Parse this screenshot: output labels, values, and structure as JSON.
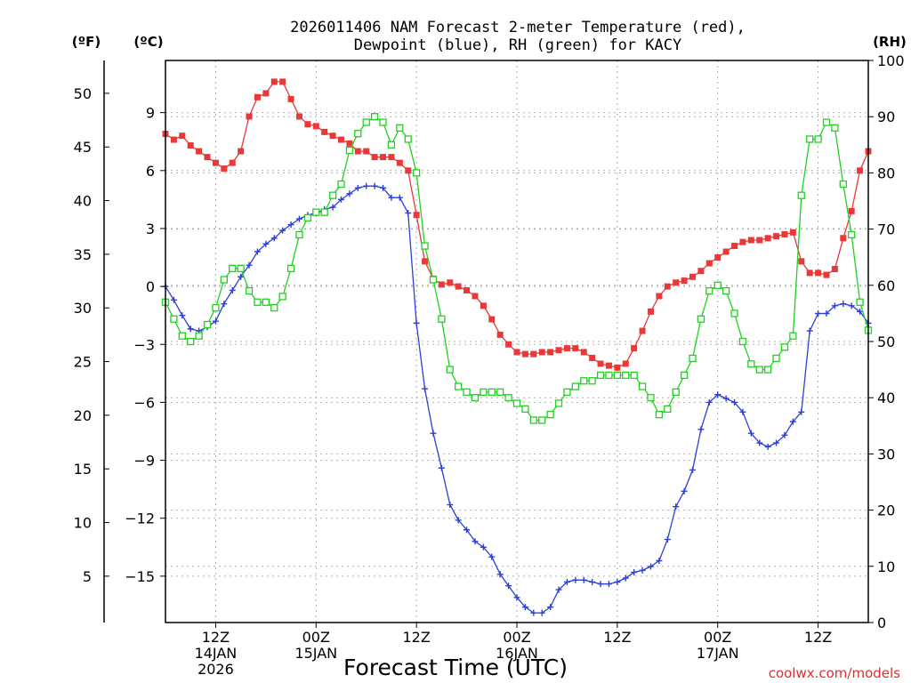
{
  "chart_data": {
    "type": "line",
    "title_lines": [
      "2026011406 NAM Forecast 2-meter Temperature (red),",
      "Dewpoint (blue), RH (green) for KACY"
    ],
    "xlabel": "Forecast Time (UTC)",
    "watermark": "coolwx.com/models",
    "axis_labels": {
      "f": "(ºF)",
      "c": "(ºC)",
      "rh": "(RH)"
    },
    "f_ticks": [
      "5",
      "10",
      "15",
      "20",
      "25",
      "30",
      "35",
      "40",
      "45",
      "50"
    ],
    "c_ticks": [
      "−15",
      "−12",
      "−9",
      "−6",
      "−3",
      "0",
      "3",
      "6",
      "9"
    ],
    "rh_ticks": [
      "0",
      "10",
      "20",
      "30",
      "40",
      "50",
      "60",
      "70",
      "80",
      "90",
      "100"
    ],
    "c_range": [
      -17.4,
      11.7
    ],
    "rh_range": [
      0,
      100
    ],
    "x_range": [
      6,
      90
    ],
    "x_ticks": [
      {
        "hour": 12,
        "lines": [
          "12Z",
          "14JAN",
          "2026"
        ]
      },
      {
        "hour": 24,
        "lines": [
          "00Z",
          "15JAN"
        ]
      },
      {
        "hour": 36,
        "lines": [
          "12Z"
        ]
      },
      {
        "hour": 48,
        "lines": [
          "00Z",
          "16JAN"
        ]
      },
      {
        "hour": 60,
        "lines": [
          "12Z"
        ]
      },
      {
        "hour": 72,
        "lines": [
          "00Z",
          "17JAN"
        ]
      },
      {
        "hour": 84,
        "lines": [
          "12Z"
        ]
      }
    ],
    "grid": true,
    "colors": {
      "temperature": "#e83838",
      "dewpoint": "#2c3fd6",
      "rh": "#22d022",
      "grid": "#b0b0b0"
    },
    "series": [
      {
        "key": "temperature",
        "marker": "filled-square",
        "values": [
          [
            6,
            7.9
          ],
          [
            7,
            7.6
          ],
          [
            8,
            7.8
          ],
          [
            9,
            7.3
          ],
          [
            10,
            7.0
          ],
          [
            11,
            6.7
          ],
          [
            12,
            6.4
          ],
          [
            13,
            6.1
          ],
          [
            14,
            6.4
          ],
          [
            15,
            7.0
          ],
          [
            16,
            8.8
          ],
          [
            17,
            9.8
          ],
          [
            18,
            10.0
          ],
          [
            19,
            10.6
          ],
          [
            20,
            10.6
          ],
          [
            21,
            9.7
          ],
          [
            22,
            8.8
          ],
          [
            23,
            8.4
          ],
          [
            24,
            8.3
          ],
          [
            25,
            8.0
          ],
          [
            26,
            7.8
          ],
          [
            27,
            7.6
          ],
          [
            28,
            7.4
          ],
          [
            29,
            7.0
          ],
          [
            30,
            7.0
          ],
          [
            31,
            6.7
          ],
          [
            32,
            6.7
          ],
          [
            33,
            6.7
          ],
          [
            34,
            6.4
          ],
          [
            35,
            6.0
          ],
          [
            36,
            3.7
          ],
          [
            37,
            1.3
          ],
          [
            38,
            0.4
          ],
          [
            39,
            0.1
          ],
          [
            40,
            0.2
          ],
          [
            41,
            0.0
          ],
          [
            42,
            -0.2
          ],
          [
            43,
            -0.5
          ],
          [
            44,
            -1.0
          ],
          [
            45,
            -1.7
          ],
          [
            46,
            -2.5
          ],
          [
            47,
            -3.0
          ],
          [
            48,
            -3.4
          ],
          [
            49,
            -3.5
          ],
          [
            50,
            -3.5
          ],
          [
            51,
            -3.4
          ],
          [
            52,
            -3.4
          ],
          [
            53,
            -3.3
          ],
          [
            54,
            -3.2
          ],
          [
            55,
            -3.2
          ],
          [
            56,
            -3.4
          ],
          [
            57,
            -3.7
          ],
          [
            58,
            -4.0
          ],
          [
            59,
            -4.1
          ],
          [
            60,
            -4.2
          ],
          [
            61,
            -4.0
          ],
          [
            62,
            -3.2
          ],
          [
            63,
            -2.3
          ],
          [
            64,
            -1.3
          ],
          [
            65,
            -0.5
          ],
          [
            66,
            0.0
          ],
          [
            67,
            0.2
          ],
          [
            68,
            0.3
          ],
          [
            69,
            0.5
          ],
          [
            70,
            0.8
          ],
          [
            71,
            1.2
          ],
          [
            72,
            1.5
          ],
          [
            73,
            1.8
          ],
          [
            74,
            2.1
          ],
          [
            75,
            2.3
          ],
          [
            76,
            2.4
          ],
          [
            77,
            2.4
          ],
          [
            78,
            2.5
          ],
          [
            79,
            2.6
          ],
          [
            80,
            2.7
          ],
          [
            81,
            2.8
          ],
          [
            82,
            1.3
          ],
          [
            83,
            0.7
          ],
          [
            84,
            0.7
          ],
          [
            85,
            0.6
          ],
          [
            86,
            0.9
          ],
          [
            87,
            2.5
          ],
          [
            88,
            3.9
          ],
          [
            89,
            6.0
          ],
          [
            90,
            7.0
          ]
        ]
      },
      {
        "key": "dewpoint",
        "marker": "plus",
        "values": [
          [
            6,
            0.0
          ],
          [
            7,
            -0.7
          ],
          [
            8,
            -1.5
          ],
          [
            9,
            -2.2
          ],
          [
            10,
            -2.3
          ],
          [
            11,
            -2.1
          ],
          [
            12,
            -1.8
          ],
          [
            13,
            -0.9
          ],
          [
            14,
            -0.2
          ],
          [
            15,
            0.5
          ],
          [
            16,
            1.1
          ],
          [
            17,
            1.8
          ],
          [
            18,
            2.2
          ],
          [
            19,
            2.5
          ],
          [
            20,
            2.9
          ],
          [
            21,
            3.2
          ],
          [
            22,
            3.5
          ],
          [
            23,
            3.7
          ],
          [
            24,
            3.8
          ],
          [
            25,
            4.0
          ],
          [
            26,
            4.1
          ],
          [
            27,
            4.5
          ],
          [
            28,
            4.8
          ],
          [
            29,
            5.1
          ],
          [
            30,
            5.2
          ],
          [
            31,
            5.2
          ],
          [
            32,
            5.1
          ],
          [
            33,
            4.6
          ],
          [
            34,
            4.6
          ],
          [
            35,
            3.8
          ],
          [
            36,
            -1.9
          ],
          [
            37,
            -5.3
          ],
          [
            38,
            -7.6
          ],
          [
            39,
            -9.4
          ],
          [
            40,
            -11.3
          ],
          [
            41,
            -12.1
          ],
          [
            42,
            -12.6
          ],
          [
            43,
            -13.2
          ],
          [
            44,
            -13.5
          ],
          [
            45,
            -14.0
          ],
          [
            46,
            -14.9
          ],
          [
            47,
            -15.5
          ],
          [
            48,
            -16.1
          ],
          [
            49,
            -16.6
          ],
          [
            50,
            -16.9
          ],
          [
            51,
            -16.9
          ],
          [
            52,
            -16.6
          ],
          [
            53,
            -15.7
          ],
          [
            54,
            -15.3
          ],
          [
            55,
            -15.2
          ],
          [
            56,
            -15.2
          ],
          [
            57,
            -15.3
          ],
          [
            58,
            -15.4
          ],
          [
            59,
            -15.4
          ],
          [
            60,
            -15.3
          ],
          [
            61,
            -15.1
          ],
          [
            62,
            -14.8
          ],
          [
            63,
            -14.7
          ],
          [
            64,
            -14.5
          ],
          [
            65,
            -14.2
          ],
          [
            66,
            -13.1
          ],
          [
            67,
            -11.4
          ],
          [
            68,
            -10.6
          ],
          [
            69,
            -9.5
          ],
          [
            70,
            -7.4
          ],
          [
            71,
            -6.0
          ],
          [
            72,
            -5.6
          ],
          [
            73,
            -5.8
          ],
          [
            74,
            -6.0
          ],
          [
            75,
            -6.5
          ],
          [
            76,
            -7.6
          ],
          [
            77,
            -8.1
          ],
          [
            78,
            -8.3
          ],
          [
            79,
            -8.1
          ],
          [
            80,
            -7.7
          ],
          [
            81,
            -7.0
          ],
          [
            82,
            -6.5
          ],
          [
            83,
            -2.3
          ],
          [
            84,
            -1.4
          ],
          [
            85,
            -1.4
          ],
          [
            86,
            -1.0
          ],
          [
            87,
            -0.9
          ],
          [
            88,
            -1.0
          ],
          [
            89,
            -1.3
          ],
          [
            90,
            -1.9
          ]
        ]
      },
      {
        "key": "rh",
        "marker": "open-square",
        "values": [
          [
            6,
            57
          ],
          [
            7,
            54
          ],
          [
            8,
            51
          ],
          [
            9,
            50
          ],
          [
            10,
            51
          ],
          [
            11,
            53
          ],
          [
            12,
            56
          ],
          [
            13,
            61
          ],
          [
            14,
            63
          ],
          [
            15,
            63
          ],
          [
            16,
            59
          ],
          [
            17,
            57
          ],
          [
            18,
            57
          ],
          [
            19,
            56
          ],
          [
            20,
            58
          ],
          [
            21,
            63
          ],
          [
            22,
            69
          ],
          [
            23,
            72
          ],
          [
            24,
            73
          ],
          [
            25,
            73
          ],
          [
            26,
            76
          ],
          [
            27,
            78
          ],
          [
            28,
            84
          ],
          [
            29,
            87
          ],
          [
            30,
            89
          ],
          [
            31,
            90
          ],
          [
            32,
            89
          ],
          [
            33,
            85
          ],
          [
            34,
            88
          ],
          [
            35,
            86
          ],
          [
            36,
            80
          ],
          [
            37,
            67
          ],
          [
            38,
            61
          ],
          [
            39,
            54
          ],
          [
            40,
            45
          ],
          [
            41,
            42
          ],
          [
            42,
            41
          ],
          [
            43,
            40
          ],
          [
            44,
            41
          ],
          [
            45,
            41
          ],
          [
            46,
            41
          ],
          [
            47,
            40
          ],
          [
            48,
            39
          ],
          [
            49,
            38
          ],
          [
            50,
            36
          ],
          [
            51,
            36
          ],
          [
            52,
            37
          ],
          [
            53,
            39
          ],
          [
            54,
            41
          ],
          [
            55,
            42
          ],
          [
            56,
            43
          ],
          [
            57,
            43
          ],
          [
            58,
            44
          ],
          [
            59,
            44
          ],
          [
            60,
            44
          ],
          [
            61,
            44
          ],
          [
            62,
            44
          ],
          [
            63,
            42
          ],
          [
            64,
            40
          ],
          [
            65,
            37
          ],
          [
            66,
            38
          ],
          [
            67,
            41
          ],
          [
            68,
            44
          ],
          [
            69,
            47
          ],
          [
            70,
            54
          ],
          [
            71,
            59
          ],
          [
            72,
            60
          ],
          [
            73,
            59
          ],
          [
            74,
            55
          ],
          [
            75,
            50
          ],
          [
            76,
            46
          ],
          [
            77,
            45
          ],
          [
            78,
            45
          ],
          [
            79,
            47
          ],
          [
            80,
            49
          ],
          [
            81,
            51
          ],
          [
            82,
            76
          ],
          [
            83,
            86
          ],
          [
            84,
            86
          ],
          [
            85,
            89
          ],
          [
            86,
            88
          ],
          [
            87,
            78
          ],
          [
            88,
            69
          ],
          [
            89,
            57
          ],
          [
            90,
            52
          ]
        ]
      }
    ]
  }
}
